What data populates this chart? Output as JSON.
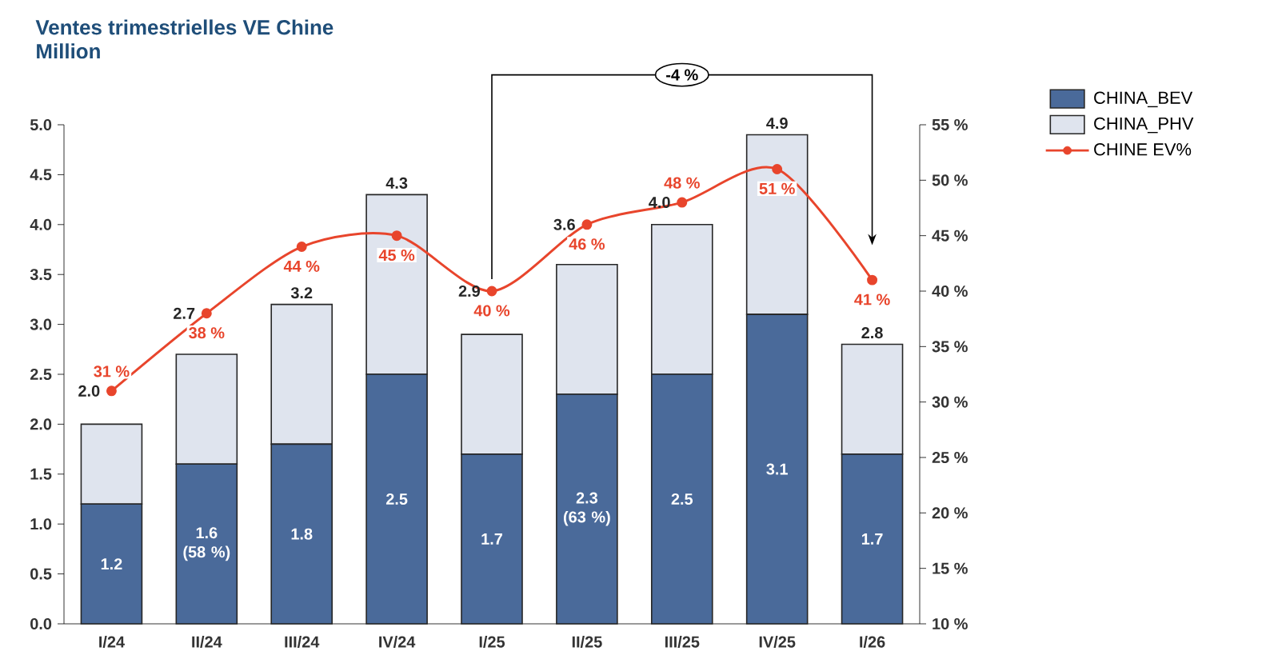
{
  "chart_data": {
    "type": "bar",
    "title": "Ventes trimestrielles VE Chine",
    "subtitle": "Million",
    "categories": [
      "I/24",
      "II/24",
      "III/24",
      "IV/24",
      "I/25",
      "II/25",
      "III/25",
      "IV/25",
      "I/26"
    ],
    "stacked": true,
    "series": [
      {
        "name": "CHINA_BEV",
        "type": "bar",
        "color": "#4a6a9a",
        "values": [
          1.2,
          1.6,
          1.8,
          2.5,
          1.7,
          2.3,
          2.5,
          3.1,
          1.7
        ],
        "value_labels": [
          "1.2",
          "1.6 (58 %)",
          "1.8",
          "2.5",
          "1.7",
          "2.3 (63 %)",
          "2.5",
          "3.1",
          "1.7"
        ]
      },
      {
        "name": "CHINA_PHV",
        "type": "bar",
        "color": "#dfe4ee",
        "values": [
          0.8,
          1.1,
          1.4,
          1.8,
          1.2,
          1.3,
          1.5,
          1.8,
          1.1
        ]
      },
      {
        "name": "CHINE EV%",
        "type": "line",
        "axis": "y2",
        "color": "#e8452c",
        "marker": "circle",
        "values": [
          31,
          38,
          44,
          45,
          40,
          46,
          48,
          51,
          41
        ],
        "value_labels": [
          "31 %",
          "38 %",
          "44 %",
          "45 %",
          "40 %",
          "46 %",
          "48 %",
          "51 %",
          "41 %"
        ]
      }
    ],
    "totals": [
      "2.0",
      "2.7",
      "3.2",
      "4.3",
      "2.9",
      "3.6",
      "4.0",
      "4.9",
      "2.8"
    ],
    "ylim": [
      0,
      5
    ],
    "yticks": [
      {
        "value": 0,
        "label": "0.0"
      },
      {
        "value": 0.5,
        "label": "0.5"
      },
      {
        "value": 1,
        "label": "1.0"
      },
      {
        "value": 1.5,
        "label": "1.5"
      },
      {
        "value": 2,
        "label": "2.0"
      },
      {
        "value": 2.5,
        "label": "2.5"
      },
      {
        "value": 3,
        "label": "3.0"
      },
      {
        "value": 3.5,
        "label": "3.5"
      },
      {
        "value": 4,
        "label": "4.0"
      },
      {
        "value": 4.5,
        "label": "4.5"
      },
      {
        "value": 5,
        "label": "5.0"
      }
    ],
    "y2lim": [
      10,
      55
    ],
    "y2ticks": [
      {
        "value": 10,
        "label": "10 %"
      },
      {
        "value": 15,
        "label": "15 %"
      },
      {
        "value": 20,
        "label": "20 %"
      },
      {
        "value": 25,
        "label": "25 %"
      },
      {
        "value": 30,
        "label": "30 %"
      },
      {
        "value": 35,
        "label": "35 %"
      },
      {
        "value": 40,
        "label": "40 %"
      },
      {
        "value": 45,
        "label": "45 %"
      },
      {
        "value": 50,
        "label": "50 %"
      },
      {
        "value": 55,
        "label": "55 %"
      }
    ],
    "legend": "top right",
    "grid": false,
    "annotations": [
      "-4 %"
    ]
  }
}
